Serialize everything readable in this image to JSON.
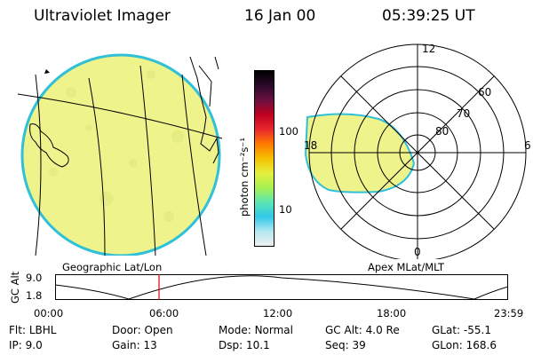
{
  "header": {
    "instrument": "Ultraviolet Imager",
    "date": "16 Jan 00",
    "time": "05:39:25 UT"
  },
  "colorbar": {
    "unit_label": "photon cm⁻²s⁻¹",
    "ticks": [
      "100",
      "10"
    ],
    "colors": [
      "#000000",
      "#2a0a2a",
      "#6a1040",
      "#c00020",
      "#e8282c",
      "#ff7a00",
      "#f4c000",
      "#e6f040",
      "#a8f050",
      "#5ce6b4",
      "#30c8e8",
      "#b4e8f0",
      "#f0f0f0"
    ]
  },
  "geo_panel": {
    "label": "Geographic Lat/Lon",
    "disk_color": "#eef38c",
    "edge_color": "#30c0d8"
  },
  "polar_panel": {
    "label": "Apex MLat/MLT",
    "mlt_labels": {
      "top": "12",
      "bottom": "0",
      "left": "18",
      "right": "6"
    },
    "mlat_labels": [
      "60",
      "70",
      "80"
    ]
  },
  "timeline": {
    "axis_title": "GC Alt",
    "y_labels": [
      "9.0",
      "1.8"
    ],
    "x_labels": [
      "00:00",
      "06:00",
      "12:00",
      "18:00",
      "23:59"
    ],
    "current_marker_color": "#e00000"
  },
  "info": {
    "row1": [
      {
        "label": "Flt:",
        "value": "LBHL"
      },
      {
        "label": "Door:",
        "value": "Open"
      },
      {
        "label": "Mode:",
        "value": "Normal"
      },
      {
        "label": "GC Alt:",
        "value": "4.0 Re"
      },
      {
        "label": "GLat:",
        "value": "-55.1"
      }
    ],
    "row2": [
      {
        "label": "IP:",
        "value": "9.0"
      },
      {
        "label": "Gain:",
        "value": "13"
      },
      {
        "label": "Dsp:",
        "value": "10.1"
      },
      {
        "label": "Seq:",
        "value": "39"
      },
      {
        "label": "GLon:",
        "value": "168.6"
      }
    ]
  }
}
